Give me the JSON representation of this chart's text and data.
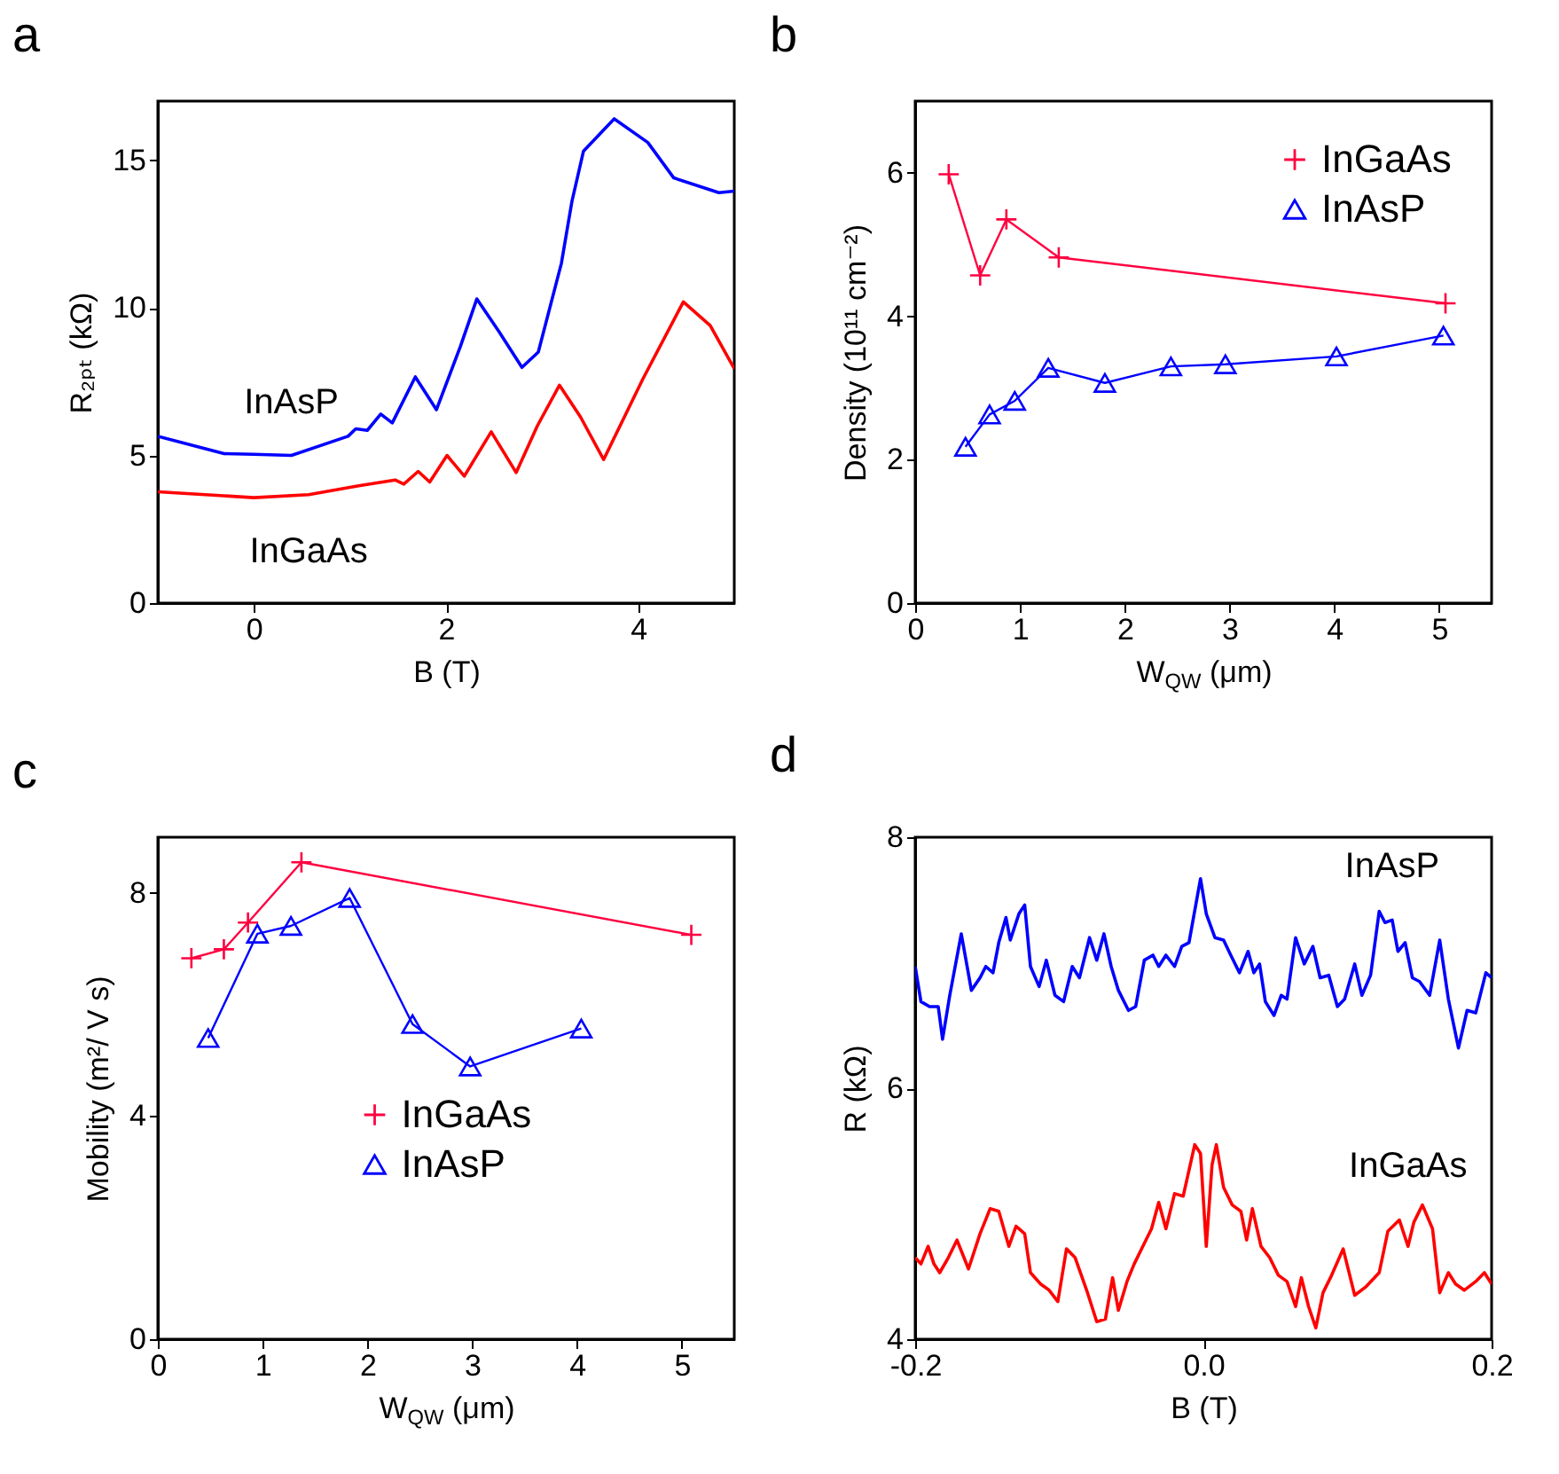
{
  "chart_data": [
    {
      "type": "line",
      "title": "a",
      "xlabel": "B (T)",
      "ylabel": "R₂ₚₜ (kΩ)",
      "xlim": [
        -1,
        5
      ],
      "xticks": [
        0,
        2,
        4
      ],
      "ylim": [
        0,
        17
      ],
      "yticks": [
        0,
        5,
        10,
        15
      ],
      "grid": false,
      "legend": false,
      "series": [
        {
          "name": "InAsP",
          "color": "#0000ff",
          "x": [
            -1,
            -0.31,
            0,
            0.39,
            0.98,
            1.06,
            1.18,
            1.32,
            1.44,
            1.68,
            1.9,
            2.15,
            2.32,
            2.55,
            2.79,
            2.96,
            3.2,
            3.31,
            3.43,
            3.75,
            4.1,
            4.37,
            4.84,
            5
          ],
          "values": [
            5.65,
            5.06,
            5.04,
            5.0,
            5.65,
            5.9,
            5.85,
            6.4,
            6.1,
            7.66,
            6.55,
            8.7,
            10.3,
            9.2,
            7.98,
            8.5,
            11.5,
            13.6,
            15.3,
            16.4,
            15.6,
            14.4,
            13.9,
            13.95
          ]
        },
        {
          "name": "InGaAs",
          "color": "#ff0000",
          "x": [
            -1,
            0,
            0.57,
            1.09,
            1.47,
            1.56,
            1.71,
            1.83,
            2.01,
            2.19,
            2.47,
            2.73,
            2.95,
            3.18,
            3.4,
            3.64,
            4.05,
            4.47,
            4.75,
            5
          ],
          "values": [
            3.77,
            3.57,
            3.67,
            3.97,
            4.17,
            4.03,
            4.46,
            4.1,
            5.0,
            4.3,
            5.8,
            4.42,
            6.0,
            7.38,
            6.3,
            4.86,
            7.6,
            10.2,
            9.4,
            7.94
          ]
        }
      ]
    },
    {
      "type": "line",
      "title": "b",
      "xlabel": "W$_{QW}$ (μm)",
      "ylabel": "Density (10¹¹ cm⁻²)",
      "xlim": [
        0,
        5.5
      ],
      "xticks": [
        0,
        1,
        2,
        3,
        4,
        5
      ],
      "ylim": [
        0,
        7
      ],
      "yticks": [
        0,
        2,
        4,
        6
      ],
      "grid": false,
      "legend": "top right",
      "series": [
        {
          "name": "InGaAs",
          "color": "#ff0040",
          "marker": "cross",
          "x": [
            0.32,
            0.62,
            0.87,
            1.37,
            5.06
          ],
          "values": [
            5.98,
            4.57,
            5.35,
            4.82,
            4.18
          ]
        },
        {
          "name": "InAsP",
          "color": "#0000ff",
          "marker": "triangle",
          "x": [
            0.48,
            0.71,
            0.95,
            1.27,
            1.81,
            2.44,
            2.96,
            4.02,
            5.04
          ],
          "values": [
            2.18,
            2.63,
            2.82,
            3.28,
            3.07,
            3.3,
            3.33,
            3.44,
            3.73
          ]
        }
      ]
    },
    {
      "type": "line",
      "title": "c",
      "xlabel": "W$_{QW}$ (μm)",
      "ylabel": "Mobility (m²/ V s)",
      "xlim": [
        0,
        5.5
      ],
      "xticks": [
        0,
        1,
        2,
        3,
        4,
        5
      ],
      "ylim": [
        0,
        9
      ],
      "yticks": [
        0,
        4,
        8
      ],
      "grid": false,
      "legend": "center",
      "series": [
        {
          "name": "InGaAs",
          "color": "#ff0040",
          "marker": "cross",
          "x": [
            0.32,
            0.63,
            0.86,
            1.37,
            5.09
          ],
          "values": [
            6.83,
            6.99,
            7.47,
            8.55,
            7.25
          ]
        },
        {
          "name": "InAsP",
          "color": "#0000ff",
          "marker": "triangle",
          "x": [
            0.48,
            0.95,
            1.27,
            1.83,
            2.43,
            2.98,
            4.04
          ],
          "values": [
            5.4,
            7.27,
            7.41,
            7.91,
            5.65,
            4.89,
            5.57
          ]
        }
      ]
    },
    {
      "type": "line",
      "title": "d",
      "xlabel": "B (T)",
      "ylabel": "R (kΩ)",
      "xlim": [
        -0.2,
        0.2
      ],
      "xticks": [
        -0.2,
        {
          "value": 0,
          "label": "0.0"
        },
        0.2
      ],
      "ylim": [
        4,
        8
      ],
      "yticks": [
        4,
        6,
        8
      ],
      "grid": false,
      "legend": false,
      "series": [
        {
          "name": "InAsP",
          "color": "#0000ff",
          "x": [
            -0.2,
            -0.196,
            -0.19,
            -0.184,
            -0.181,
            -0.176,
            -0.168,
            -0.161,
            -0.155,
            -0.151,
            -0.146,
            -0.142,
            -0.137,
            -0.134,
            -0.128,
            -0.124,
            -0.12,
            -0.114,
            -0.109,
            -0.103,
            -0.097,
            -0.091,
            -0.086,
            -0.079,
            -0.074,
            -0.069,
            -0.064,
            -0.059,
            -0.052,
            -0.047,
            -0.041,
            -0.035,
            -0.031,
            -0.026,
            -0.02,
            -0.015,
            -0.01,
            -0.002,
            0.002,
            0.008,
            0.014,
            0.019,
            0.025,
            0.031,
            0.035,
            0.039,
            0.043,
            0.049,
            0.054,
            0.058,
            0.064,
            0.07,
            0.076,
            0.081,
            0.087,
            0.093,
            0.098,
            0.105,
            0.11,
            0.116,
            0.122,
            0.126,
            0.131,
            0.135,
            0.14,
            0.145,
            0.15,
            0.157,
            0.164,
            0.17,
            0.177,
            0.183,
            0.189,
            0.196,
            0.2
          ],
          "values": [
            6.97,
            6.69,
            6.65,
            6.65,
            6.39,
            6.74,
            7.23,
            6.78,
            6.88,
            6.97,
            6.92,
            7.16,
            7.36,
            7.18,
            7.39,
            7.46,
            6.97,
            6.81,
            7.02,
            6.74,
            6.69,
            6.97,
            6.88,
            7.2,
            7.02,
            7.23,
            6.97,
            6.78,
            6.62,
            6.65,
            7.02,
            7.06,
            6.97,
            7.06,
            6.97,
            7.13,
            7.16,
            7.67,
            7.39,
            7.2,
            7.18,
            7.06,
            6.92,
            7.09,
            6.92,
            6.99,
            6.69,
            6.58,
            6.74,
            6.71,
            7.2,
            6.99,
            7.13,
            6.88,
            6.9,
            6.65,
            6.71,
            6.99,
            6.74,
            6.9,
            7.41,
            7.32,
            7.34,
            7.09,
            7.16,
            6.88,
            6.85,
            6.74,
            7.18,
            6.71,
            6.32,
            6.62,
            6.6,
            6.92,
            6.88
          ]
        },
        {
          "name": "InGaAs",
          "color": "#ff0000",
          "x": [
            -0.2,
            -0.196,
            -0.191,
            -0.187,
            -0.183,
            -0.177,
            -0.171,
            -0.163,
            -0.155,
            -0.148,
            -0.142,
            -0.135,
            -0.13,
            -0.124,
            -0.12,
            -0.113,
            -0.107,
            -0.101,
            -0.095,
            -0.089,
            -0.081,
            -0.074,
            -0.068,
            -0.063,
            -0.059,
            -0.053,
            -0.048,
            -0.042,
            -0.036,
            -0.031,
            -0.026,
            -0.02,
            -0.014,
            -0.006,
            -0.002,
            0.002,
            0.006,
            0.009,
            0.014,
            0.02,
            0.026,
            0.03,
            0.034,
            0.04,
            0.046,
            0.052,
            0.058,
            0.064,
            0.068,
            0.073,
            0.078,
            0.083,
            0.089,
            0.097,
            0.105,
            0.113,
            0.122,
            0.128,
            0.136,
            0.142,
            0.146,
            0.152,
            0.159,
            0.164,
            0.17,
            0.175,
            0.181,
            0.189,
            0.195,
            0.2
          ],
          "values": [
            4.65,
            4.6,
            4.74,
            4.6,
            4.53,
            4.65,
            4.79,
            4.56,
            4.84,
            5.04,
            5.02,
            4.74,
            4.9,
            4.84,
            4.53,
            4.44,
            4.39,
            4.3,
            4.72,
            4.65,
            4.39,
            4.14,
            4.16,
            4.49,
            4.23,
            4.46,
            4.6,
            4.74,
            4.88,
            5.09,
            4.88,
            5.16,
            5.14,
            5.55,
            5.48,
            4.74,
            5.39,
            5.55,
            5.21,
            5.07,
            5.02,
            4.79,
            5.04,
            4.74,
            4.65,
            4.51,
            4.46,
            4.26,
            4.49,
            4.26,
            4.09,
            4.37,
            4.51,
            4.72,
            4.35,
            4.42,
            4.53,
            4.86,
            4.95,
            4.74,
            4.93,
            5.07,
            4.88,
            4.37,
            4.53,
            4.44,
            4.39,
            4.46,
            4.53,
            4.44
          ]
        }
      ]
    }
  ]
}
